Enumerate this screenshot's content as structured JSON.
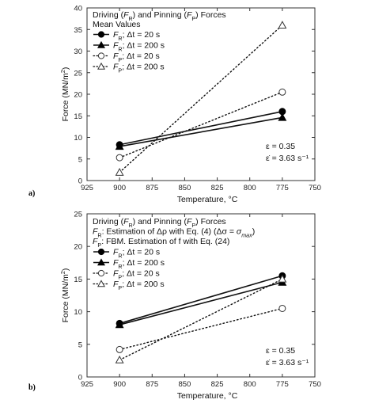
{
  "chart_data": [
    {
      "type": "line",
      "panel_label": "a)",
      "xlabel": "Temperature, °C",
      "ylabel": "Force (MN/m²)",
      "xlim": [
        925,
        750
      ],
      "ylim": [
        0,
        40
      ],
      "x_ticks": [
        925,
        900,
        875,
        850,
        825,
        800,
        775,
        750
      ],
      "y_ticks": [
        0,
        5,
        10,
        15,
        20,
        25,
        30,
        35,
        40
      ],
      "legend_title": [
        "Driving (F_R) and Pinning (F_P) Forces",
        "Mean Values"
      ],
      "series": [
        {
          "name": "F_R; Δt = 20 s",
          "marker": "circle-filled",
          "line": "solid",
          "x": [
            900,
            775
          ],
          "y": [
            8.3,
            16.0
          ]
        },
        {
          "name": "F_R; Δt = 200 s",
          "marker": "triangle-filled",
          "line": "solid",
          "x": [
            900,
            775
          ],
          "y": [
            7.9,
            14.6
          ]
        },
        {
          "name": "F_P; Δt = 20 s",
          "marker": "circle-open",
          "line": "dotted",
          "x": [
            900,
            775
          ],
          "y": [
            5.3,
            20.5
          ]
        },
        {
          "name": "F_P; Δt = 200 s",
          "marker": "triangle-open",
          "line": "dotted",
          "x": [
            900,
            775
          ],
          "y": [
            1.9,
            36.0
          ]
        }
      ],
      "annotations": [
        "ε = 0.35",
        "ε̇ = 3.63 s⁻¹"
      ]
    },
    {
      "type": "line",
      "panel_label": "b)",
      "xlabel": "Temperature, °C",
      "ylabel": "Force (MN/m²)",
      "xlim": [
        925,
        750
      ],
      "ylim": [
        0,
        25
      ],
      "x_ticks": [
        925,
        900,
        875,
        850,
        825,
        800,
        775,
        750
      ],
      "y_ticks": [
        0,
        5,
        10,
        15,
        20,
        25
      ],
      "legend_title": [
        "Driving (F_R) and Pinning (F_P) Forces",
        "F_R: Estimation of Δρ with Eq. (4) (Δσ = σ_max)",
        "F_P: FBM. Estimation of f with Eq. (24)"
      ],
      "series": [
        {
          "name": "F_R; Δt = 20 s",
          "marker": "circle-filled",
          "line": "solid",
          "x": [
            900,
            775
          ],
          "y": [
            8.2,
            15.5
          ]
        },
        {
          "name": "F_R; Δt = 200 s",
          "marker": "triangle-filled",
          "line": "solid",
          "x": [
            900,
            775
          ],
          "y": [
            8.0,
            14.5
          ]
        },
        {
          "name": "F_P; Δt = 20 s",
          "marker": "circle-open",
          "line": "dotted",
          "x": [
            900,
            775
          ],
          "y": [
            4.2,
            10.5
          ]
        },
        {
          "name": "F_P; Δt = 200 s",
          "marker": "triangle-open",
          "line": "dotted",
          "x": [
            900,
            775
          ],
          "y": [
            2.6,
            15.0
          ]
        }
      ],
      "annotations": [
        "ε = 0.35",
        "ε̇ = 3.63 s⁻¹"
      ]
    }
  ]
}
